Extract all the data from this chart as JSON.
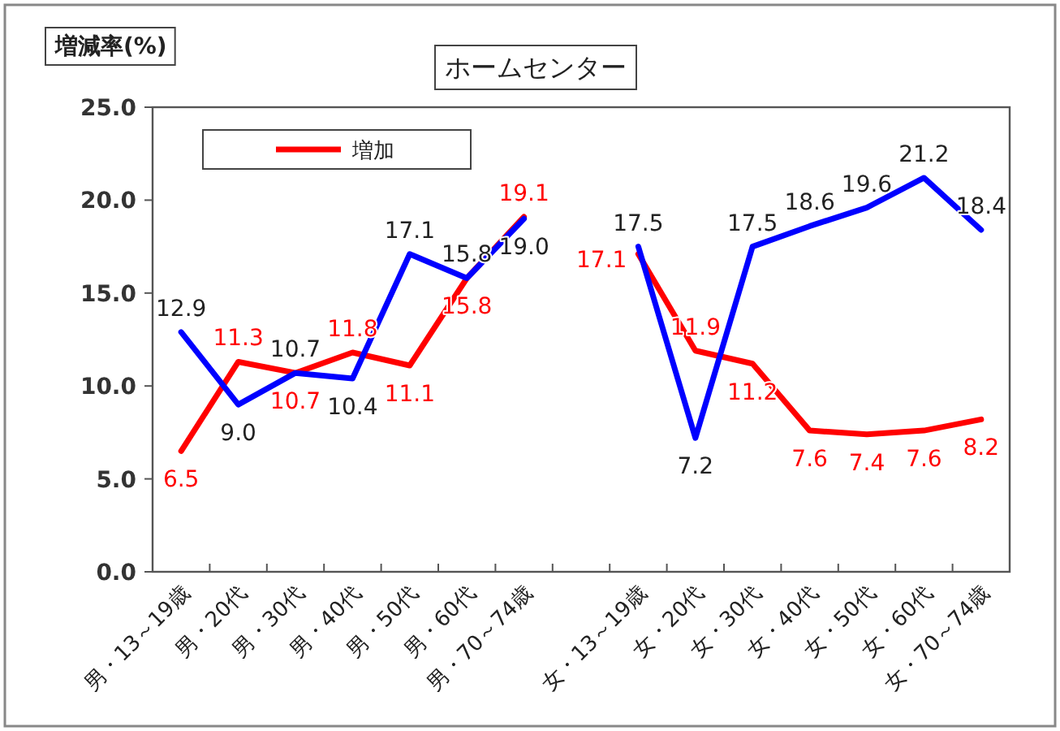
{
  "chart_data": {
    "type": "line",
    "title": "ホームセンター",
    "ylabel": "増減率(%)",
    "categories": [
      "男・13～19歳",
      "男・20代",
      "男・30代",
      "男・40代",
      "男・50代",
      "男・60代",
      "男・70～74歳",
      null,
      "女・13～19歳",
      "女・20代",
      "女・30代",
      "女・40代",
      "女・50代",
      "女・60代",
      "女・70～74歳"
    ],
    "ylim": [
      0,
      25
    ],
    "yticks": [
      {
        "value": 0,
        "label": "0.0"
      },
      {
        "value": 5,
        "label": "5.0"
      },
      {
        "value": 10,
        "label": "10.0"
      },
      {
        "value": 15,
        "label": "15.0"
      },
      {
        "value": 20,
        "label": "20.0"
      },
      {
        "value": 25,
        "label": "25.0"
      }
    ],
    "grid": false,
    "legend": "top left",
    "marker": "none",
    "line_style": "solid",
    "series": [
      {
        "name": "増加",
        "color": "#ff0000",
        "values": [
          6.5,
          11.3,
          10.7,
          11.8,
          11.1,
          15.8,
          19.1,
          null,
          17.1,
          11.9,
          11.2,
          7.6,
          7.4,
          7.6,
          8.2
        ],
        "value_labels": [
          "6.5",
          "11.3",
          "10.7",
          "11.8",
          "11.1",
          "15.8",
          "19.1",
          null,
          "17.1",
          "11.9",
          "11.2",
          "7.6",
          "7.4",
          "7.6",
          "8.2"
        ]
      },
      {
        "color": "#0000ff",
        "values": [
          12.9,
          9.0,
          10.7,
          10.4,
          17.1,
          15.8,
          19.0,
          null,
          17.5,
          7.2,
          17.5,
          18.6,
          19.6,
          21.2,
          18.4
        ],
        "value_labels": [
          "12.9",
          "9.0",
          "10.7",
          "10.4",
          "17.1",
          "15.8",
          "19.0",
          null,
          "17.5",
          "7.2",
          "17.5",
          "18.6",
          "19.6",
          "21.2",
          "18.4"
        ]
      }
    ]
  }
}
